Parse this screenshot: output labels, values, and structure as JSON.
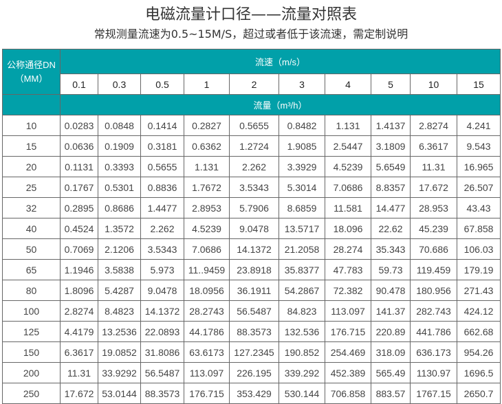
{
  "title": "电磁流量计口径——流量对照表",
  "subtitle": "常规测量流速为0.5~15M/S，超过或者低于该流速，需定制说明",
  "table": {
    "dn_header_line1": "公称通径DN",
    "dn_header_line2": "（MM）",
    "speed_header": "流速（m/s）",
    "flow_header": "流量（m³/h）",
    "speeds": [
      "0.1",
      "0.3",
      "0.5",
      "1",
      "2",
      "3",
      "4",
      "5",
      "10",
      "15"
    ],
    "rows": [
      {
        "dn": "10",
        "values": [
          "0.0283",
          "0.0848",
          "0.1414",
          "0.2827",
          "0.5655",
          "0.8482",
          "1.131",
          "1.4137",
          "2.8274",
          "4.241"
        ]
      },
      {
        "dn": "15",
        "values": [
          "0.0636",
          "0.1909",
          "0.3181",
          "0.6362",
          "1.2724",
          "1.9085",
          "2.5447",
          "3.1809",
          "6.3617",
          "9.543"
        ]
      },
      {
        "dn": "20",
        "values": [
          "0.1131",
          "0.3393",
          "0.5655",
          "1.131",
          "2.262",
          "3.3929",
          "4.5239",
          "5.6549",
          "11.31",
          "16.965"
        ]
      },
      {
        "dn": "25",
        "values": [
          "0.1767",
          "0.5301",
          "0.8836",
          "1.7672",
          "3.5343",
          "5.3014",
          "7.0686",
          "8.8357",
          "17.672",
          "26.507"
        ]
      },
      {
        "dn": "32",
        "values": [
          "0.2895",
          "0.8686",
          "1.4477",
          "2.8953",
          "5.7906",
          "8.6859",
          "11.581",
          "14.477",
          "28.953",
          "43.43"
        ]
      },
      {
        "dn": "40",
        "values": [
          "0.4524",
          "1.3572",
          "2.262",
          "4.5239",
          "9.0478",
          "13.5717",
          "18.096",
          "22.62",
          "45.239",
          "67.858"
        ]
      },
      {
        "dn": "50",
        "values": [
          "0.7069",
          "2.1206",
          "3.5343",
          "7.0686",
          "14.1372",
          "21.2058",
          "28.274",
          "35.343",
          "70.686",
          "106.03"
        ]
      },
      {
        "dn": "65",
        "values": [
          "1.1946",
          "3.5838",
          "5.973",
          "11..9459",
          "23.8918",
          "35.8377",
          "47.783",
          "59.73",
          "119.459",
          "179.19"
        ]
      },
      {
        "dn": "80",
        "values": [
          "1.8096",
          "5.4287",
          "9.0478",
          "18.0956",
          "36.1911",
          "54.2867",
          "72.382",
          "90.478",
          "180.956",
          "271.43"
        ]
      },
      {
        "dn": "100",
        "values": [
          "2.8274",
          "8.4823",
          "14.1372",
          "28.2743",
          "56.5487",
          "84.823",
          "113.097",
          "141.37",
          "282.743",
          "424.12"
        ]
      },
      {
        "dn": "125",
        "values": [
          "4.4179",
          "13.2536",
          "22.0893",
          "44.1786",
          "88.3573",
          "132.536",
          "176.715",
          "220.89",
          "441.786",
          "662.68"
        ]
      },
      {
        "dn": "150",
        "values": [
          "6.3617",
          "19.0852",
          "31.8086",
          "63.6173",
          "127.2345",
          "190.852",
          "254.469",
          "318.09",
          "636.173",
          "954.26"
        ]
      },
      {
        "dn": "200",
        "values": [
          "11.31",
          "33.9292",
          "56.5487",
          "113.097",
          "226.195",
          "339.292",
          "452.389",
          "565.49",
          "1130.97",
          "1696.5"
        ]
      },
      {
        "dn": "250",
        "values": [
          "17.672",
          "53.0144",
          "88.3573",
          "176.715",
          "353.429",
          "530.144",
          "706.858",
          "883.57",
          "1767.15",
          "2650.7"
        ]
      }
    ]
  },
  "colors": {
    "header_bg": "#01a0a9",
    "border": "#666666"
  }
}
